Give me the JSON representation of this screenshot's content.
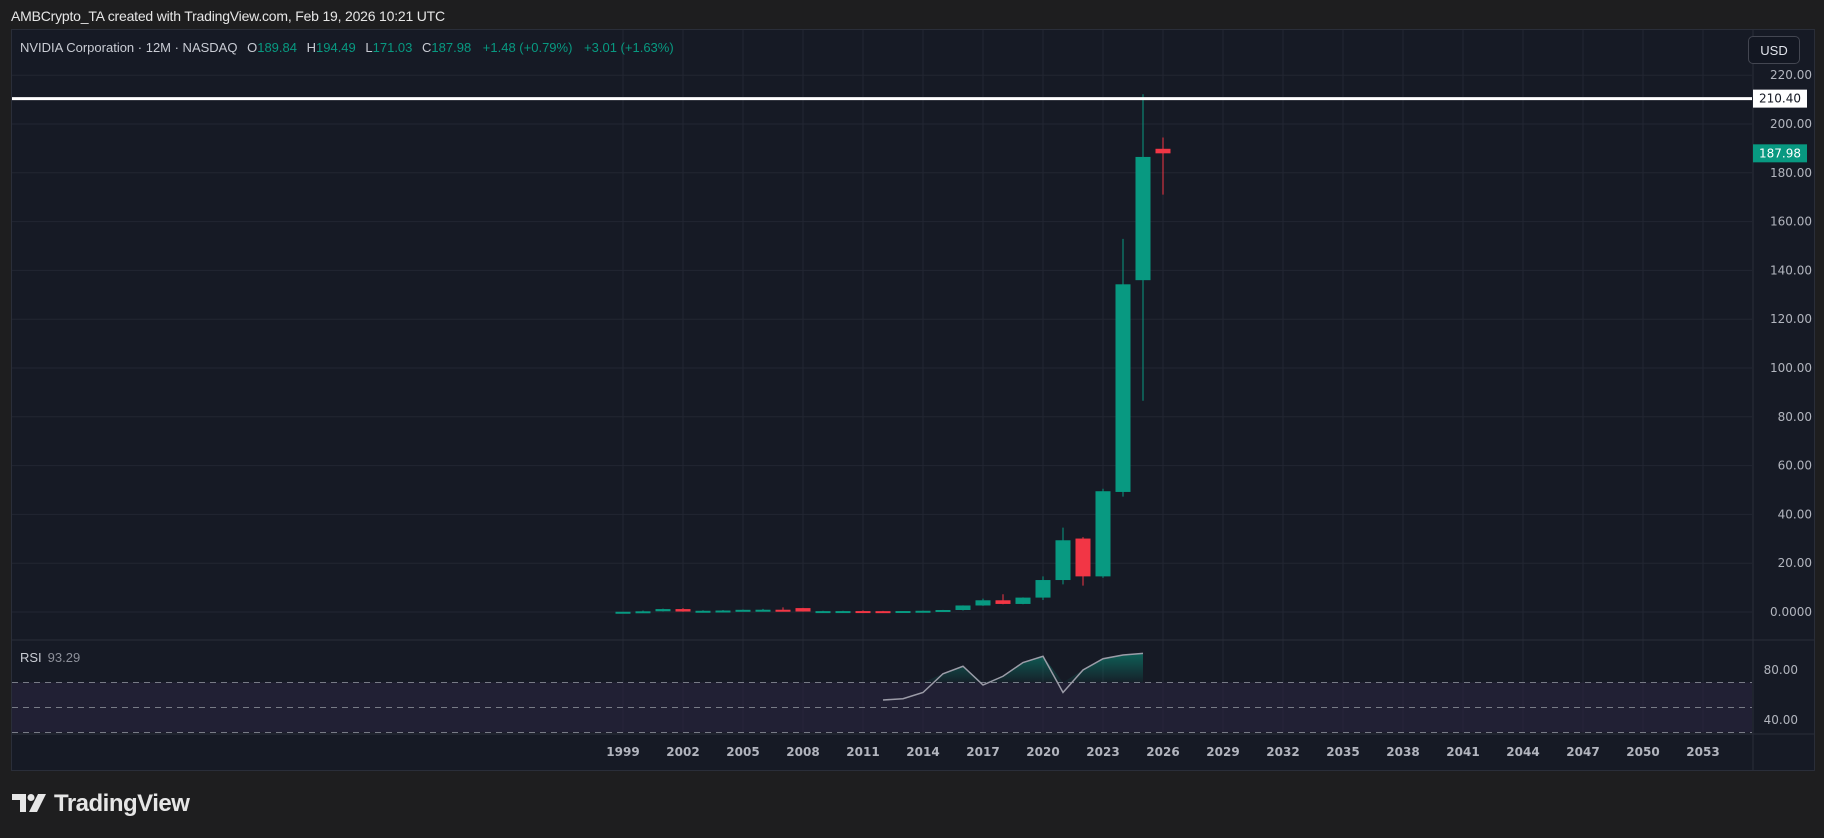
{
  "attribution": "AMBCrypto_TA created with TradingView.com, Feb 19, 2026 10:21 UTC",
  "legend": {
    "symbol": "NVIDIA Corporation · 12M · NASDAQ",
    "open_label": "O",
    "open": "189.84",
    "high_label": "H",
    "high": "194.49",
    "low_label": "L",
    "low": "171.03",
    "close_label": "C",
    "close": "187.98",
    "change": "+1.48 (+0.79%)",
    "change2": "+3.01 (+1.63%)"
  },
  "currency_button": "USD",
  "rsi": {
    "label": "RSI",
    "value": "93.29"
  },
  "price_axis": {
    "ticks": [
      "220.00",
      "200.00",
      "180.00",
      "160.00",
      "140.00",
      "120.00",
      "100.00",
      "80.00",
      "60.00",
      "40.00",
      "20.00",
      "0.0000"
    ],
    "horizontal_line_label": "210.40",
    "last_price_label": "187.98"
  },
  "rsi_axis": {
    "ticks": [
      "80.00",
      "40.00"
    ]
  },
  "time_axis": {
    "ticks": [
      "1999",
      "2002",
      "2005",
      "2008",
      "2011",
      "2014",
      "2017",
      "2020",
      "2023",
      "2026",
      "2029",
      "2032",
      "2035",
      "2038",
      "2041",
      "2044",
      "2047",
      "2050",
      "2053"
    ]
  },
  "brand": "TradingView",
  "colors": {
    "up": "#089981",
    "down": "#f23645",
    "background": "#161a25",
    "rsi_line": "#9c9ca8",
    "rsi_band": "#2a2540"
  },
  "chart_data": {
    "type": "candlestick",
    "title": "NVIDIA Corporation · 12M · NASDAQ",
    "xlabel": "",
    "ylabel": "USD",
    "ylim": [
      0,
      220
    ],
    "grid": true,
    "horizontal_line": 210.4,
    "candles": [
      {
        "year": 1999,
        "open": 0.04,
        "high": 0.1,
        "low": 0.03,
        "close": 0.1
      },
      {
        "year": 2000,
        "open": 0.1,
        "high": 0.6,
        "low": 0.07,
        "close": 0.3
      },
      {
        "year": 2001,
        "open": 0.3,
        "high": 1.4,
        "low": 0.2,
        "close": 1.2
      },
      {
        "year": 2002,
        "open": 1.2,
        "high": 1.6,
        "low": 0.1,
        "close": 0.2
      },
      {
        "year": 2003,
        "open": 0.2,
        "high": 0.7,
        "low": 0.1,
        "close": 0.5
      },
      {
        "year": 2004,
        "open": 0.5,
        "high": 0.8,
        "low": 0.2,
        "close": 0.6
      },
      {
        "year": 2005,
        "open": 0.6,
        "high": 1.0,
        "low": 0.5,
        "close": 0.9
      },
      {
        "year": 2006,
        "open": 0.9,
        "high": 1.3,
        "low": 0.8,
        "close": 0.93
      },
      {
        "year": 2007,
        "open": 0.93,
        "high": 1.9,
        "low": 0.7,
        "close": 0.85
      },
      {
        "year": 2008,
        "open": 1.6,
        "high": 1.7,
        "low": 0.15,
        "close": 0.2
      },
      {
        "year": 2009,
        "open": 0.2,
        "high": 0.5,
        "low": 0.15,
        "close": 0.37
      },
      {
        "year": 2010,
        "open": 0.37,
        "high": 0.5,
        "low": 0.2,
        "close": 0.38
      },
      {
        "year": 2011,
        "open": 0.38,
        "high": 0.65,
        "low": 0.3,
        "close": 0.35
      },
      {
        "year": 2012,
        "open": 0.35,
        "high": 0.45,
        "low": 0.28,
        "close": 0.3
      },
      {
        "year": 2013,
        "open": 0.3,
        "high": 0.4,
        "low": 0.28,
        "close": 0.4
      },
      {
        "year": 2014,
        "open": 0.4,
        "high": 0.55,
        "low": 0.38,
        "close": 0.5
      },
      {
        "year": 2015,
        "open": 0.5,
        "high": 0.85,
        "low": 0.45,
        "close": 0.82
      },
      {
        "year": 2016,
        "open": 0.82,
        "high": 2.7,
        "low": 0.6,
        "close": 2.67
      },
      {
        "year": 2017,
        "open": 2.67,
        "high": 5.5,
        "low": 2.5,
        "close": 4.8
      },
      {
        "year": 2018,
        "open": 4.8,
        "high": 7.3,
        "low": 3.2,
        "close": 3.3
      },
      {
        "year": 2019,
        "open": 3.3,
        "high": 6.0,
        "low": 3.2,
        "close": 5.9
      },
      {
        "year": 2020,
        "open": 5.9,
        "high": 14.6,
        "low": 4.9,
        "close": 13.1
      },
      {
        "year": 2021,
        "open": 13.1,
        "high": 34.6,
        "low": 11.3,
        "close": 29.4
      },
      {
        "year": 2022,
        "open": 30.1,
        "high": 30.7,
        "low": 10.8,
        "close": 14.6
      },
      {
        "year": 2023,
        "open": 14.6,
        "high": 50.5,
        "low": 14.0,
        "close": 49.5
      },
      {
        "year": 2024,
        "open": 49.2,
        "high": 152.9,
        "low": 47.3,
        "close": 134.3
      },
      {
        "year": 2025,
        "open": 136.0,
        "high": 212.2,
        "low": 86.6,
        "close": 186.5
      },
      {
        "year": 2026,
        "open": 189.84,
        "high": 194.49,
        "low": 171.03,
        "close": 187.98
      }
    ],
    "rsi": {
      "value": 93.29,
      "upper_band": 70,
      "middle_band": 50,
      "lower_band": 30,
      "axis_ticks": [
        80,
        40
      ],
      "points": [
        {
          "year": 2012,
          "value": 56
        },
        {
          "year": 2013,
          "value": 57
        },
        {
          "year": 2014,
          "value": 62
        },
        {
          "year": 2015,
          "value": 77
        },
        {
          "year": 2016,
          "value": 83
        },
        {
          "year": 2017,
          "value": 68
        },
        {
          "year": 2018,
          "value": 75
        },
        {
          "year": 2019,
          "value": 86
        },
        {
          "year": 2020,
          "value": 91
        },
        {
          "year": 2021,
          "value": 62
        },
        {
          "year": 2022,
          "value": 80
        },
        {
          "year": 2023,
          "value": 89
        },
        {
          "year": 2024,
          "value": 92
        },
        {
          "year": 2025,
          "value": 93.29
        }
      ]
    }
  }
}
